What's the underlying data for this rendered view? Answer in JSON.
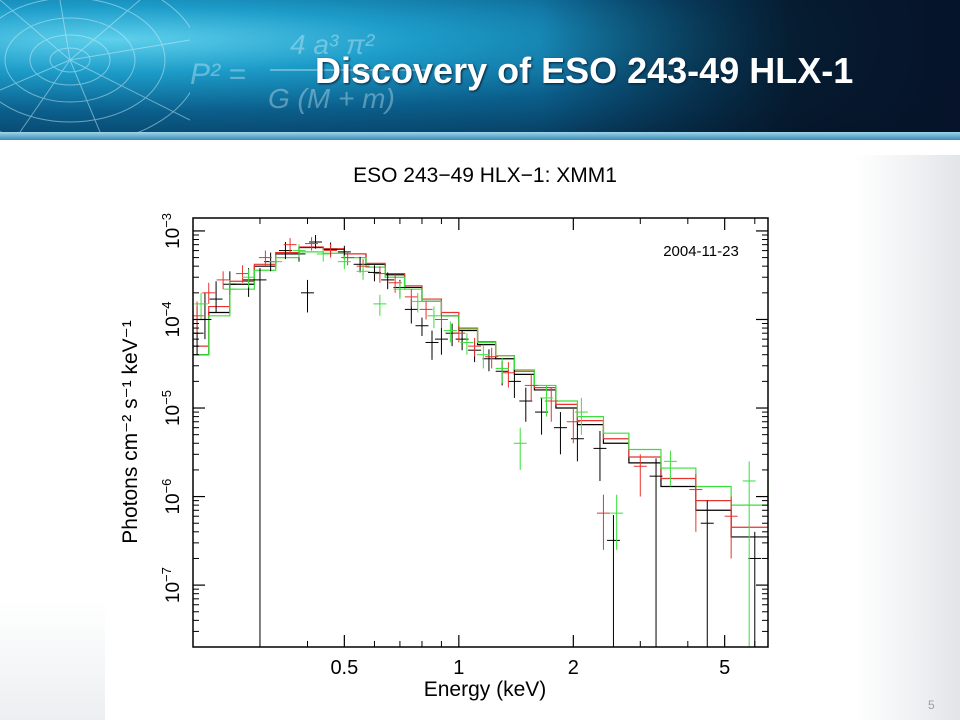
{
  "slide": {
    "title": "Discovery of ESO 243-49 HLX-1",
    "page_number": "5",
    "banner_formula": {
      "lhs": "P² =",
      "numerator": "4 a³ π²",
      "denominator": "G (M + m)"
    }
  },
  "chart_data": {
    "type": "scatter",
    "title": "ESO 243−49 HLX−1: XMM1",
    "xlabel": "Energy (keV)",
    "ylabel": "Photons cm⁻² s⁻¹ keV⁻¹",
    "x_scale": "log",
    "y_scale": "log",
    "xlim": [
      0.2,
      6.5
    ],
    "ylim": [
      2e-08,
      0.0014
    ],
    "x_ticks": [
      0.5,
      1,
      2,
      5
    ],
    "x_tick_labels": [
      "0.5",
      "1",
      "2",
      "5"
    ],
    "y_ticks": [
      1e-07,
      1e-06,
      1e-05,
      0.0001,
      0.001
    ],
    "y_tick_labels": [
      {
        "base": "10",
        "exp": "−7"
      },
      {
        "base": "10",
        "exp": "−6"
      },
      {
        "base": "10",
        "exp": "−5"
      },
      {
        "base": "10",
        "exp": "−4"
      },
      {
        "base": "10",
        "exp": "−3"
      }
    ],
    "annotation": "2004-11-23",
    "grid": false,
    "series": [
      {
        "color": "#000000",
        "points": [
          [
            0.205,
            7e-05,
            3e-05,
            7e-05
          ],
          [
            0.215,
            0.0001,
            4e-05,
            0.0001
          ],
          [
            0.23,
            0.00017,
            5e-05,
            0.0001
          ],
          [
            0.25,
            0.00025,
            6e-05,
            0.0001
          ],
          [
            0.28,
            0.00028,
            0.0001,
            0.0001
          ],
          [
            0.3,
            0.00028,
            0.00028,
            0.0001
          ],
          [
            0.32,
            0.00045,
            0.0001,
            0.00012
          ],
          [
            0.35,
            0.0006,
            0.00012,
            0.00015
          ],
          [
            0.38,
            0.00055,
            0.0001,
            0.00014
          ],
          [
            0.4,
            0.0002,
            8e-05,
            8e-05
          ],
          [
            0.42,
            0.00075,
            0.00012,
            0.00015
          ],
          [
            0.46,
            0.00062,
            0.0001,
            0.00012
          ],
          [
            0.5,
            0.00058,
            0.0001,
            0.0001
          ],
          [
            0.55,
            0.00042,
            8e-05,
            9e-05
          ],
          [
            0.6,
            0.00034,
            7e-05,
            7e-05
          ],
          [
            0.65,
            0.00028,
            6e-05,
            6e-05
          ],
          [
            0.7,
            0.00023,
            5e-05,
            5e-05
          ],
          [
            0.75,
            0.00013,
            4e-05,
            4e-05
          ],
          [
            0.8,
            8.5e-05,
            2e-05,
            2e-05
          ],
          [
            0.85,
            5.5e-05,
            2e-05,
            2e-05
          ],
          [
            0.9,
            6e-05,
            2e-05,
            2e-05
          ],
          [
            0.96,
            7e-05,
            2e-05,
            2e-05
          ],
          [
            1.02,
            6e-05,
            1.5e-05,
            1.5e-05
          ],
          [
            1.1,
            4.5e-05,
            1.2e-05,
            1.2e-05
          ],
          [
            1.2,
            3.6e-05,
            1e-05,
            1e-05
          ],
          [
            1.3,
            2.6e-05,
            8e-06,
            8e-06
          ],
          [
            1.4,
            2e-05,
            7e-06,
            7e-06
          ],
          [
            1.5,
            1.2e-05,
            5e-06,
            5e-06
          ],
          [
            1.65,
            9e-06,
            4e-06,
            4e-06
          ],
          [
            1.85,
            6e-06,
            3e-06,
            3e-06
          ],
          [
            2.05,
            4.5e-06,
            2e-06,
            2e-06
          ],
          [
            2.35,
            3.5e-06,
            2e-06,
            2e-06
          ],
          [
            2.55,
            3.2e-07,
            3e-07,
            3e-07
          ],
          [
            3.3,
            1.7e-06,
            1.7e-06,
            1e-06
          ],
          [
            4.5,
            5e-07,
            5e-07,
            4e-07
          ],
          [
            6.0,
            2e-07,
            2e-07,
            2e-07
          ]
        ]
      },
      {
        "color": "#e8322e",
        "points": [
          [
            0.205,
            0.00011,
            4e-05,
            5e-05
          ],
          [
            0.22,
            0.0002,
            5e-05,
            6e-05
          ],
          [
            0.24,
            0.00028,
            6e-05,
            7e-05
          ],
          [
            0.27,
            0.00033,
            7e-05,
            8e-05
          ],
          [
            0.31,
            0.0005,
            0.0001,
            0.0001
          ],
          [
            0.36,
            0.0007,
            0.00012,
            0.00013
          ],
          [
            0.41,
            0.00072,
            0.00012,
            0.00013
          ],
          [
            0.46,
            0.0006,
            0.0001,
            0.00011
          ],
          [
            0.51,
            0.0005,
            9e-05,
            9e-05
          ],
          [
            0.56,
            0.0004,
            8e-05,
            8e-05
          ],
          [
            0.62,
            0.00033,
            7e-05,
            7e-05
          ],
          [
            0.68,
            0.00026,
            6e-05,
            6e-05
          ],
          [
            0.75,
            0.00018,
            4e-05,
            4e-05
          ],
          [
            0.82,
            0.00013,
            3e-05,
            3e-05
          ],
          [
            0.9,
            0.0001,
            2e-05,
            2e-05
          ],
          [
            1.0,
            7e-05,
            1.5e-05,
            1.5e-05
          ],
          [
            1.1,
            5e-05,
            1.2e-05,
            1.2e-05
          ],
          [
            1.22,
            3.8e-05,
            1e-05,
            1e-05
          ],
          [
            1.35,
            2.5e-05,
            8e-06,
            8e-06
          ],
          [
            1.55,
            1.8e-05,
            6e-06,
            6e-06
          ],
          [
            1.75,
            1.2e-05,
            5e-06,
            5e-06
          ],
          [
            2.0,
            7e-06,
            3e-06,
            3e-06
          ],
          [
            2.4,
            6.5e-07,
            4e-07,
            4e-07
          ],
          [
            3.0,
            2.2e-06,
            1.2e-06,
            8e-07
          ],
          [
            4.2,
            1.2e-06,
            8e-07,
            6e-07
          ],
          [
            5.2,
            6e-07,
            4e-07,
            4e-07
          ]
        ]
      },
      {
        "color": "#3adf3a",
        "points": [
          [
            0.21,
            0.00015,
            5e-05,
            5e-05
          ],
          [
            0.25,
            0.00022,
            6e-05,
            6e-05
          ],
          [
            0.28,
            0.0003,
            7e-05,
            7e-05
          ],
          [
            0.33,
            0.00045,
            8e-05,
            9e-05
          ],
          [
            0.38,
            0.0006,
            0.0001,
            0.00011
          ],
          [
            0.44,
            0.00055,
            0.0001,
            0.0001
          ],
          [
            0.5,
            0.00045,
            8e-05,
            8e-05
          ],
          [
            0.56,
            0.00035,
            7e-05,
            7e-05
          ],
          [
            0.62,
            0.00015,
            4e-05,
            4e-05
          ],
          [
            0.7,
            0.00022,
            5e-05,
            5e-05
          ],
          [
            0.78,
            0.00016,
            4e-05,
            4e-05
          ],
          [
            0.86,
            0.00011,
            3e-05,
            3e-05
          ],
          [
            0.95,
            7.5e-05,
            2e-05,
            2e-05
          ],
          [
            1.05,
            5.5e-05,
            1.5e-05,
            1.5e-05
          ],
          [
            1.16,
            4e-05,
            1.2e-05,
            1.2e-05
          ],
          [
            1.3,
            2.8e-05,
            9e-06,
            9e-06
          ],
          [
            1.45,
            4e-06,
            2e-06,
            2e-06
          ],
          [
            1.7,
            1.3e-05,
            5e-06,
            5e-06
          ],
          [
            2.1,
            9e-06,
            4e-06,
            4e-06
          ],
          [
            2.6,
            6.5e-07,
            4e-07,
            4e-07
          ],
          [
            3.6,
            2.5e-06,
            1.2e-06,
            8e-07
          ],
          [
            5.8,
            1.5e-06,
            1.5e-06,
            1e-06
          ]
        ]
      }
    ],
    "models": [
      {
        "color": "#000000",
        "steps": [
          [
            0.2,
            4e-05
          ],
          [
            0.22,
            0.00012
          ],
          [
            0.25,
            0.00025
          ],
          [
            0.29,
            0.0004
          ],
          [
            0.33,
            0.00055
          ],
          [
            0.38,
            0.00065
          ],
          [
            0.44,
            0.00062
          ],
          [
            0.5,
            0.00055
          ],
          [
            0.57,
            0.00042
          ],
          [
            0.64,
            0.00032
          ],
          [
            0.72,
            0.00023
          ],
          [
            0.8,
            0.00016
          ],
          [
            0.9,
            0.00011
          ],
          [
            1.0,
            7.5e-05
          ],
          [
            1.12,
            5.2e-05
          ],
          [
            1.25,
            3.6e-05
          ],
          [
            1.4,
            2.4e-05
          ],
          [
            1.58,
            1.6e-05
          ],
          [
            1.8,
            1e-05
          ],
          [
            2.05,
            6.5e-06
          ],
          [
            2.4,
            4e-06
          ],
          [
            2.8,
            2.4e-06
          ],
          [
            3.4,
            1.3e-06
          ],
          [
            4.2,
            7e-07
          ],
          [
            5.2,
            3.5e-07
          ],
          [
            6.5,
            2e-07
          ]
        ]
      },
      {
        "color": "#e8322e",
        "steps": [
          [
            0.2,
            5e-05
          ],
          [
            0.22,
            0.00014
          ],
          [
            0.25,
            0.00027
          ],
          [
            0.29,
            0.00042
          ],
          [
            0.33,
            0.00057
          ],
          [
            0.38,
            0.00066
          ],
          [
            0.44,
            0.00063
          ],
          [
            0.5,
            0.00055
          ],
          [
            0.57,
            0.00043
          ],
          [
            0.64,
            0.00033
          ],
          [
            0.72,
            0.00024
          ],
          [
            0.8,
            0.00017
          ],
          [
            0.9,
            0.00012
          ],
          [
            1.0,
            8e-05
          ],
          [
            1.12,
            5.6e-05
          ],
          [
            1.25,
            3.9e-05
          ],
          [
            1.4,
            2.6e-05
          ],
          [
            1.58,
            1.7e-05
          ],
          [
            1.8,
            1.1e-05
          ],
          [
            2.05,
            7.2e-06
          ],
          [
            2.4,
            4.5e-06
          ],
          [
            2.8,
            2.8e-06
          ],
          [
            3.4,
            1.6e-06
          ],
          [
            4.2,
            9e-07
          ],
          [
            5.2,
            4.5e-07
          ]
        ]
      },
      {
        "color": "#3adf3a",
        "steps": [
          [
            0.2,
            4e-05
          ],
          [
            0.22,
            0.00011
          ],
          [
            0.25,
            0.00022
          ],
          [
            0.29,
            0.00036
          ],
          [
            0.33,
            0.0005
          ],
          [
            0.38,
            0.00058
          ],
          [
            0.44,
            0.00056
          ],
          [
            0.5,
            0.0005
          ],
          [
            0.57,
            0.00039
          ],
          [
            0.64,
            0.0003
          ],
          [
            0.72,
            0.00022
          ],
          [
            0.8,
            0.00016
          ],
          [
            0.9,
            0.00011
          ],
          [
            1.0,
            7.8e-05
          ],
          [
            1.12,
            5.5e-05
          ],
          [
            1.25,
            3.9e-05
          ],
          [
            1.4,
            2.7e-05
          ],
          [
            1.58,
            1.8e-05
          ],
          [
            1.8,
            1.2e-05
          ],
          [
            2.05,
            8e-06
          ],
          [
            2.4,
            5.2e-06
          ],
          [
            2.8,
            3.4e-06
          ],
          [
            3.4,
            2.1e-06
          ],
          [
            4.2,
            1.3e-06
          ],
          [
            5.2,
            8e-07
          ],
          [
            6.5,
            1.5e-06
          ]
        ]
      }
    ]
  }
}
